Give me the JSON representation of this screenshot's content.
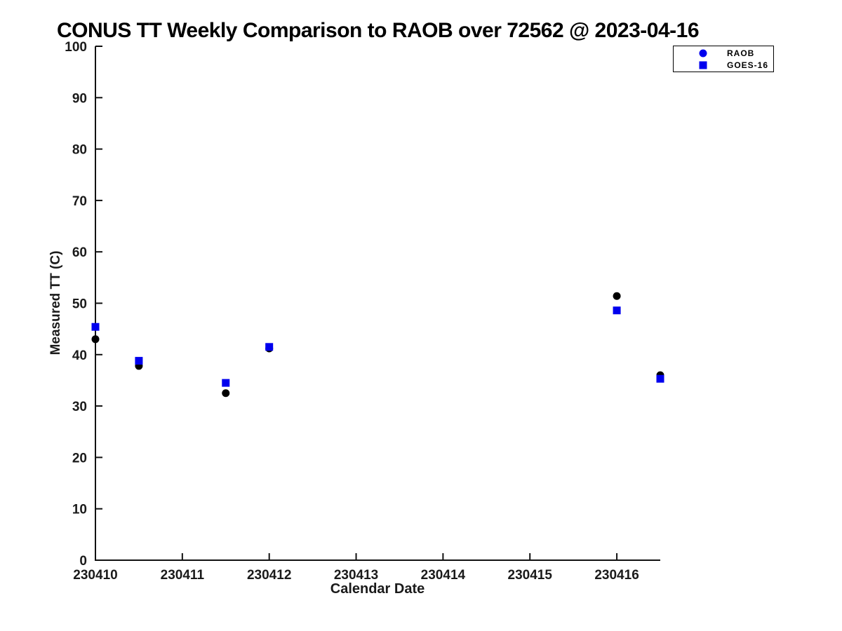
{
  "chart_data": {
    "type": "scatter",
    "title": "CONUS TT Weekly Comparison to RAOB over 72562 @ 2023-04-16",
    "xlabel": "Calendar Date",
    "ylabel": "Measured TT (C)",
    "xlim": [
      230410,
      230416.5
    ],
    "ylim": [
      0,
      100
    ],
    "xticks": [
      230410,
      230411,
      230412,
      230413,
      230414,
      230415,
      230416
    ],
    "xtick_labels": [
      "230410",
      "230411",
      "230412",
      "230413",
      "230414",
      "230415",
      "230416"
    ],
    "yticks": [
      0,
      10,
      20,
      30,
      40,
      50,
      60,
      70,
      80,
      90,
      100
    ],
    "ytick_labels": [
      "0",
      "10",
      "20",
      "30",
      "40",
      "50",
      "60",
      "70",
      "80",
      "90",
      "100"
    ],
    "grid": false,
    "legend_position": "top-right",
    "axis_color": "#111111",
    "series": [
      {
        "name": "RAOB",
        "marker": "circle",
        "plot_color": "#000000",
        "legend_color": "#0000ee",
        "x": [
          230410.0,
          230410.5,
          230411.5,
          230412.0,
          230416.0,
          230416.5
        ],
        "y": [
          43.0,
          37.8,
          32.5,
          41.2,
          51.4,
          36.0
        ]
      },
      {
        "name": "GOES-16",
        "marker": "square",
        "plot_color": "#0000ee",
        "legend_color": "#0000ee",
        "x": [
          230410.0,
          230410.5,
          230411.5,
          230412.0,
          230416.0,
          230416.5
        ],
        "y": [
          45.4,
          38.8,
          34.5,
          41.5,
          48.6,
          35.3
        ]
      }
    ]
  }
}
